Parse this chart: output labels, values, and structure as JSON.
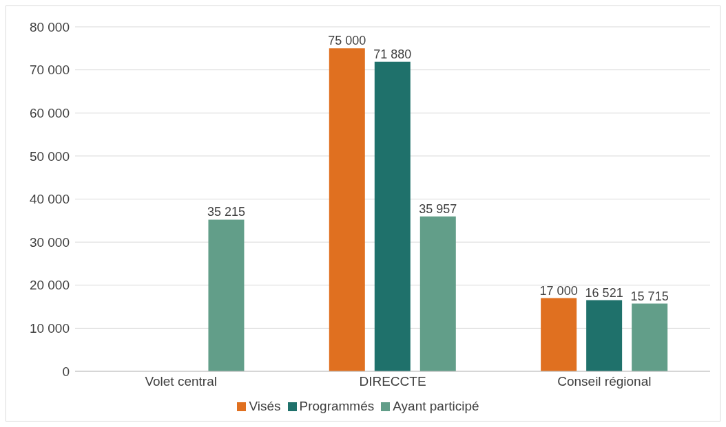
{
  "chart_data": {
    "type": "bar",
    "categories": [
      "Volet central",
      "DIRECCTE",
      "Conseil régional"
    ],
    "series": [
      {
        "name": "Visés",
        "color": "#e07020",
        "values": [
          null,
          75000,
          17000
        ],
        "value_labels": [
          null,
          "75 000",
          "17 000"
        ]
      },
      {
        "name": "Programmés",
        "color": "#1f716b",
        "values": [
          null,
          71880,
          16521
        ],
        "value_labels": [
          null,
          "71 880",
          "16 521"
        ]
      },
      {
        "name": "Ayant participé",
        "color": "#629e89",
        "values": [
          35215,
          35957,
          15715
        ],
        "value_labels": [
          "35 215",
          "35 957",
          "15 715"
        ]
      }
    ],
    "ylim": [
      0,
      80000
    ],
    "yticks": [
      {
        "value": 0,
        "label": "0"
      },
      {
        "value": 10000,
        "label": "10 000"
      },
      {
        "value": 20000,
        "label": "20 000"
      },
      {
        "value": 30000,
        "label": "30 000"
      },
      {
        "value": 40000,
        "label": "40 000"
      },
      {
        "value": 50000,
        "label": "50 000"
      },
      {
        "value": 60000,
        "label": "60 000"
      },
      {
        "value": 70000,
        "label": "70 000"
      },
      {
        "value": 80000,
        "label": "80 000"
      }
    ],
    "grid": "y",
    "legend": "bottom"
  }
}
